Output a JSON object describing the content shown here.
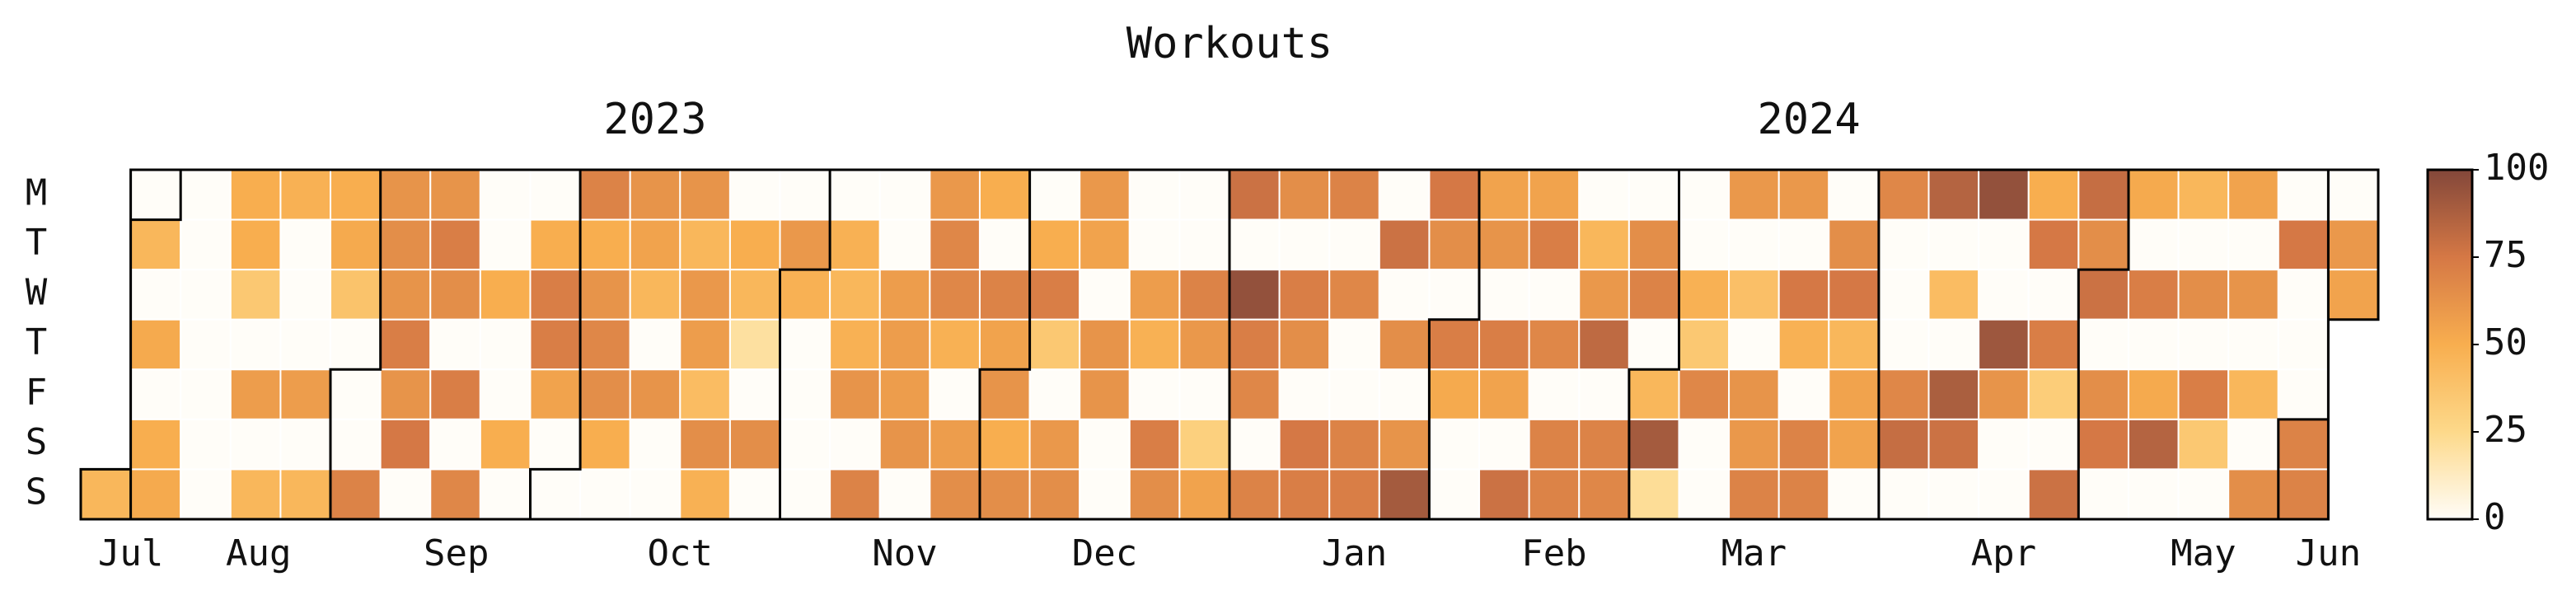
{
  "chart_data": {
    "type": "calendar_heatmap",
    "title": "Workouts",
    "rows": [
      "M",
      "T",
      "W",
      "T",
      "F",
      "S",
      "S"
    ],
    "xlim": [
      0,
      46
    ],
    "xticks": [
      {
        "value": 1,
        "label": "Jul"
      },
      {
        "value": 3.56,
        "label": "Aug"
      },
      {
        "value": 7.52,
        "label": "Sep"
      },
      {
        "value": 12,
        "label": "Oct"
      },
      {
        "value": 16.5,
        "label": "Nov"
      },
      {
        "value": 20.5,
        "label": "Dec"
      },
      {
        "value": 25.5,
        "label": "Jan"
      },
      {
        "value": 29.5,
        "label": "Feb"
      },
      {
        "value": 33.5,
        "label": "Mar"
      },
      {
        "value": 38.5,
        "label": "Apr"
      },
      {
        "value": 42.5,
        "label": "May"
      },
      {
        "value": 45,
        "label": "Jun"
      }
    ],
    "x2ticks": [
      {
        "value": 11.5,
        "label": "2023"
      },
      {
        "value": 34.6,
        "label": "2024"
      }
    ],
    "values": [
      [
        null,
        0,
        0,
        50,
        48,
        50,
        62,
        62,
        0,
        0,
        70,
        62,
        62,
        0,
        0,
        0,
        0,
        60,
        50,
        0,
        60,
        0,
        0,
        78,
        65,
        70,
        0,
        75,
        55,
        55,
        0,
        0,
        0,
        60,
        60,
        0,
        68,
        85,
        95,
        50,
        80,
        52,
        45,
        55,
        0,
        0
      ],
      [
        null,
        45,
        0,
        50,
        0,
        52,
        65,
        72,
        0,
        50,
        50,
        55,
        45,
        50,
        60,
        48,
        0,
        68,
        0,
        50,
        55,
        0,
        0,
        0,
        0,
        0,
        78,
        65,
        62,
        72,
        45,
        65,
        0,
        0,
        0,
        65,
        0,
        0,
        0,
        75,
        65,
        0,
        0,
        0,
        75,
        60
      ],
      [
        null,
        0,
        0,
        35,
        0,
        38,
        62,
        65,
        50,
        72,
        62,
        45,
        60,
        45,
        48,
        45,
        58,
        68,
        70,
        72,
        0,
        58,
        70,
        95,
        72,
        68,
        0,
        0,
        0,
        0,
        60,
        70,
        48,
        40,
        75,
        75,
        0,
        42,
        0,
        0,
        78,
        72,
        65,
        62,
        0,
        55
      ],
      [
        null,
        52,
        0,
        0,
        0,
        0,
        72,
        0,
        0,
        72,
        68,
        0,
        58,
        20,
        0,
        48,
        58,
        48,
        55,
        35,
        62,
        48,
        60,
        72,
        65,
        0,
        65,
        72,
        72,
        68,
        82,
        0,
        35,
        0,
        48,
        45,
        0,
        0,
        92,
        72,
        0,
        0,
        0,
        0,
        0,
        null
      ],
      [
        null,
        0,
        0,
        58,
        58,
        0,
        62,
        72,
        0,
        55,
        65,
        62,
        42,
        0,
        0,
        62,
        58,
        0,
        62,
        0,
        62,
        0,
        0,
        68,
        0,
        0,
        0,
        52,
        55,
        0,
        0,
        45,
        68,
        62,
        0,
        55,
        68,
        88,
        62,
        32,
        65,
        52,
        72,
        45,
        0,
        null
      ],
      [
        null,
        50,
        0,
        0,
        0,
        0,
        75,
        0,
        50,
        0,
        50,
        0,
        65,
        65,
        0,
        0,
        62,
        58,
        50,
        60,
        0,
        72,
        30,
        0,
        75,
        70,
        62,
        0,
        0,
        70,
        70,
        90,
        0,
        60,
        70,
        55,
        80,
        78,
        0,
        0,
        75,
        85,
        35,
        0,
        70,
        null
      ],
      [
        45,
        52,
        0,
        45,
        45,
        70,
        0,
        68,
        0,
        0,
        0,
        0,
        48,
        0,
        0,
        70,
        0,
        65,
        65,
        65,
        0,
        65,
        55,
        70,
        72,
        72,
        90,
        0,
        78,
        70,
        68,
        22,
        0,
        70,
        70,
        0,
        0,
        0,
        0,
        78,
        0,
        0,
        0,
        65,
        70,
        null
      ]
    ],
    "colormap": [
      "#fffdf8",
      "#fdd98a",
      "#f8ae4f",
      "#d57845",
      "#83473a"
    ],
    "clim": [
      0,
      100
    ],
    "cticks": [
      0,
      25,
      50,
      75,
      100
    ]
  }
}
